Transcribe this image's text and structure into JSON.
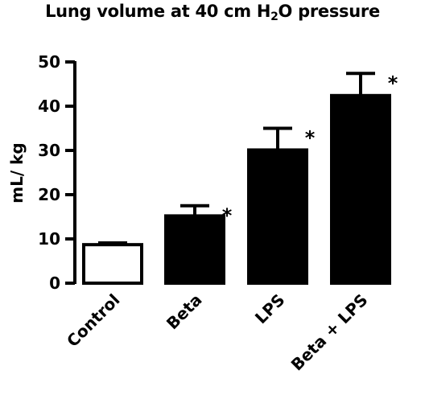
{
  "chart_data": {
    "type": "bar",
    "title": {
      "prefix": "Lung volume at 40 cm H",
      "subscript": "2",
      "suffix": "O pressure"
    },
    "xlabel": "",
    "ylabel": "mL/ kg",
    "ylim": [
      0,
      50
    ],
    "yticks": [
      "0",
      "10",
      "20",
      "30",
      "40",
      "50"
    ],
    "ytick_values": [
      0,
      10,
      20,
      30,
      40,
      50
    ],
    "categories": [
      "Control",
      "Beta",
      "LPS",
      "Beta + LPS"
    ],
    "values": [
      8.7,
      15.2,
      30.1,
      42.4
    ],
    "errors": [
      0.4,
      2.3,
      4.9,
      5.0
    ],
    "significance": [
      "",
      "*",
      "*",
      "*"
    ],
    "bar_fill": [
      "#ffffff",
      "#000000",
      "#000000",
      "#000000"
    ],
    "bar_stroke": "#000000",
    "grid": false,
    "legend": "none"
  }
}
